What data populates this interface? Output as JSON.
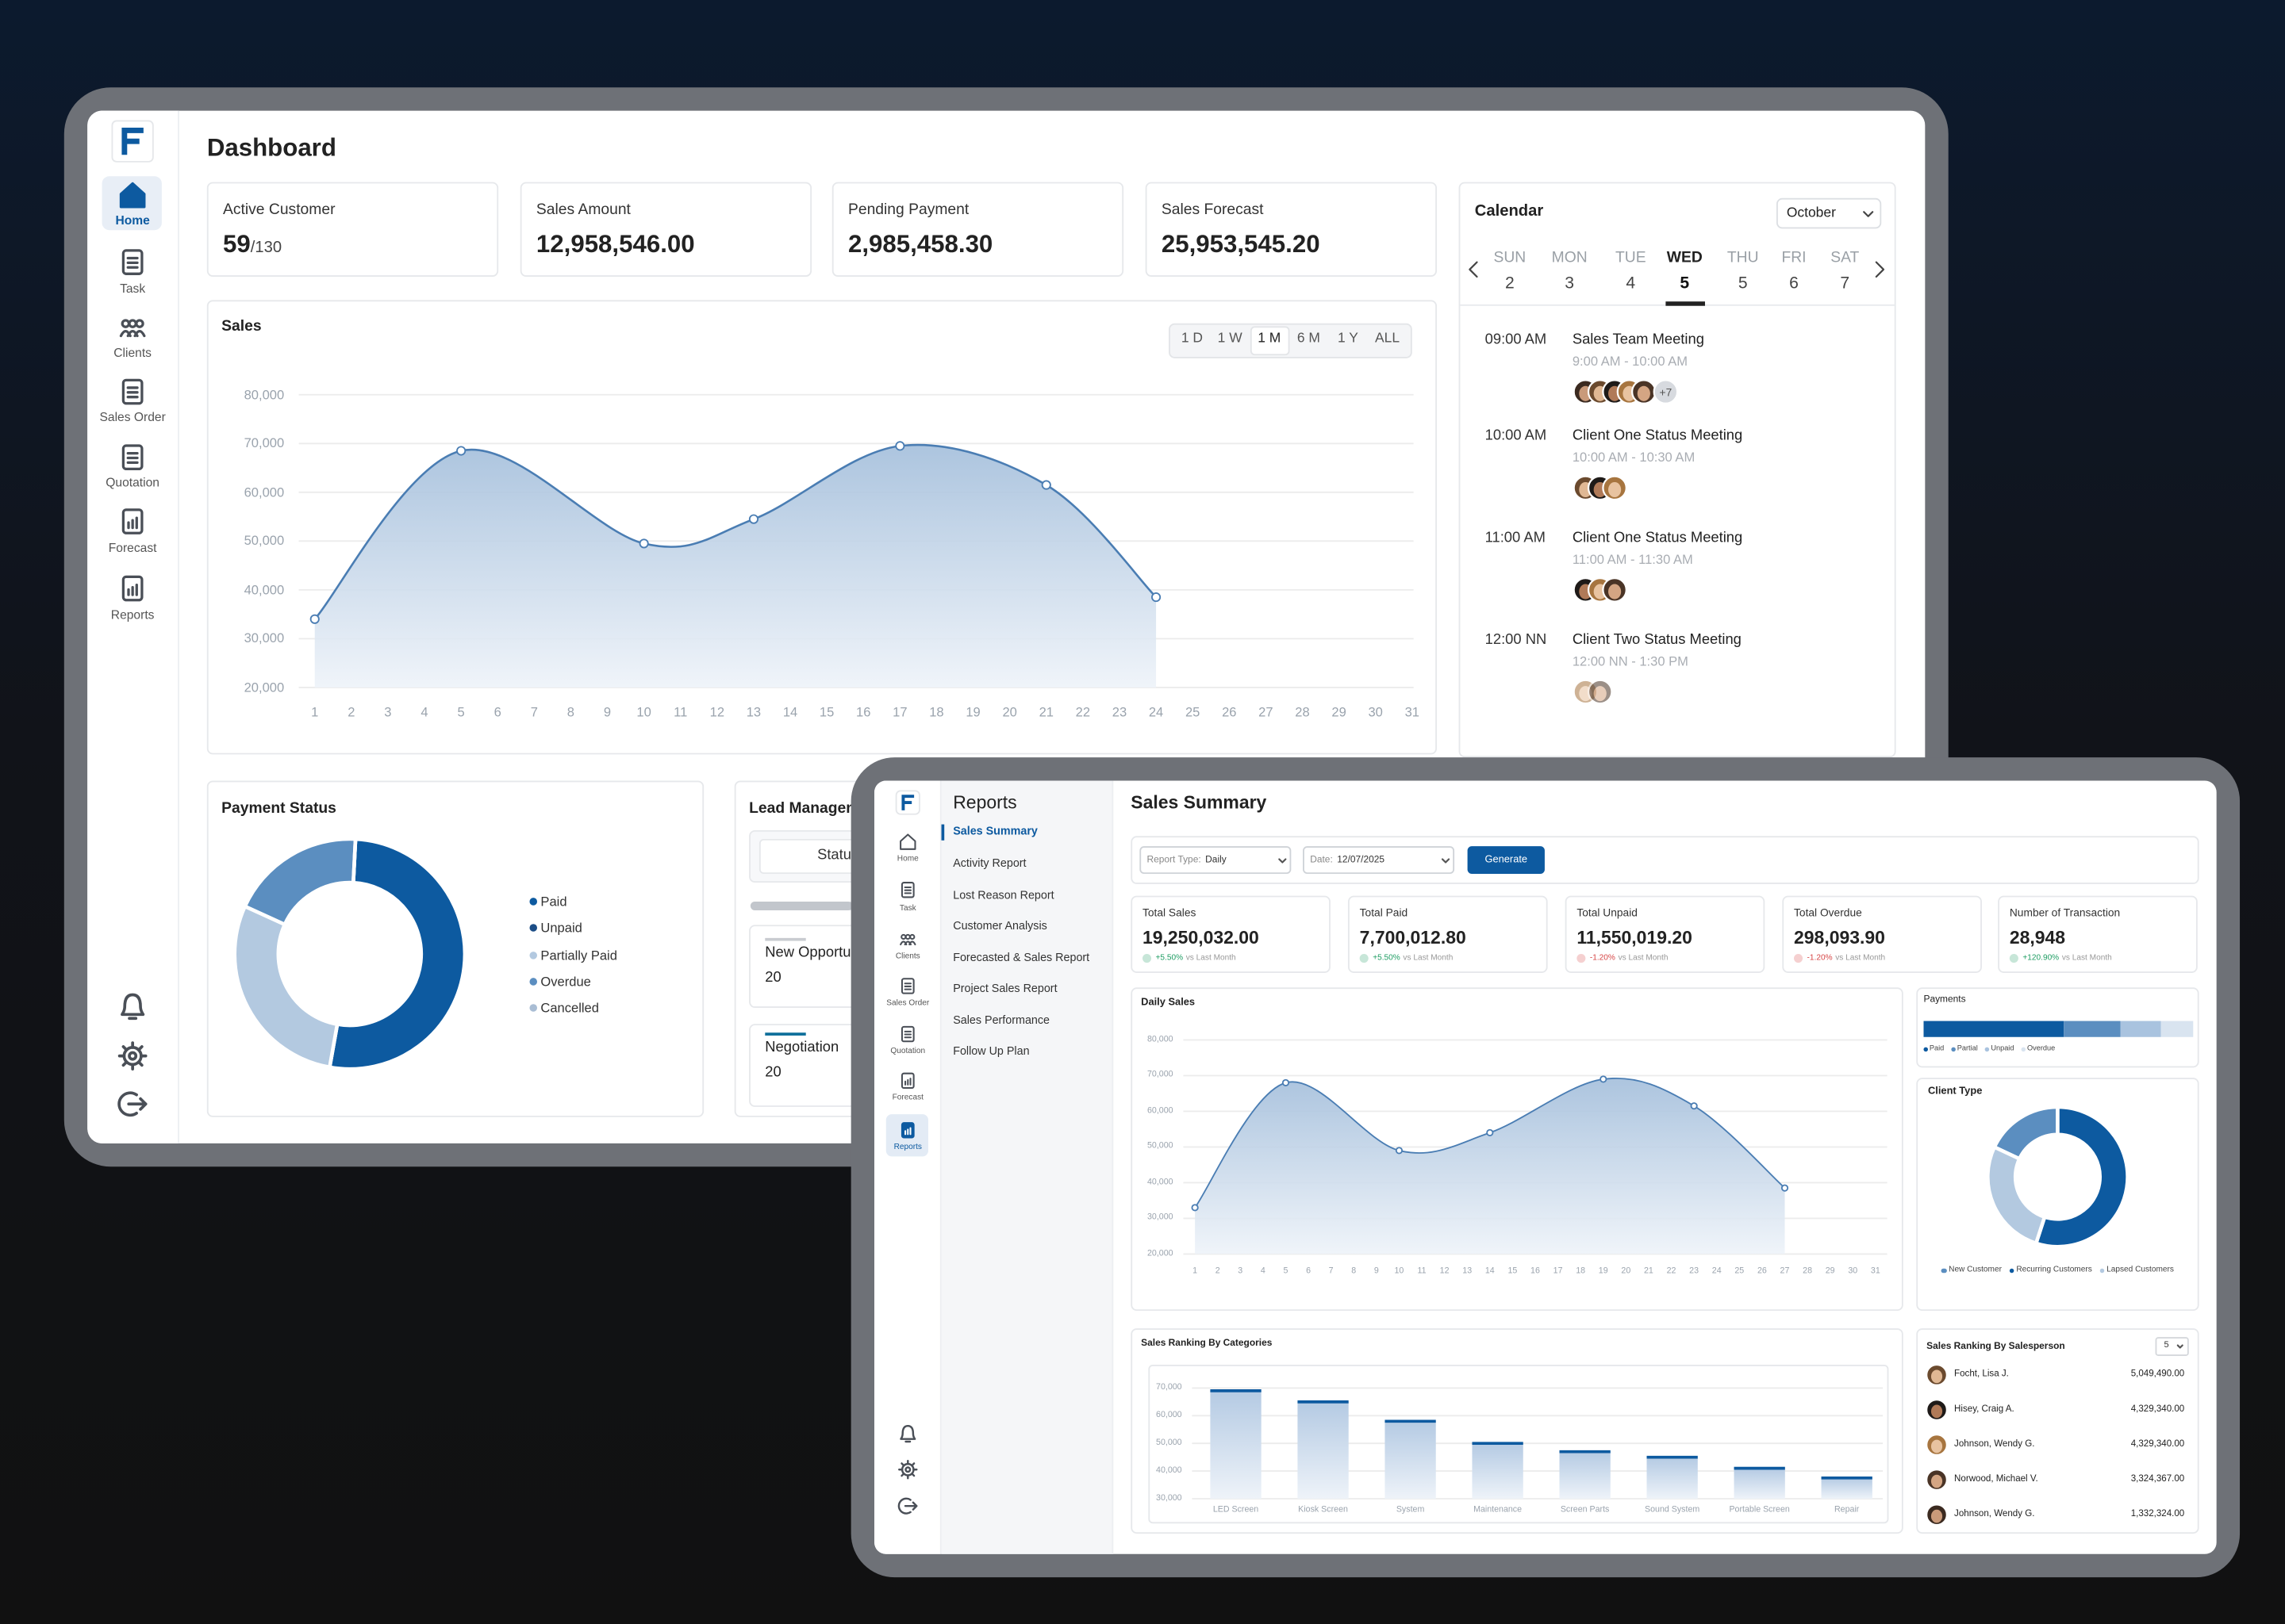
{
  "dashboard": {
    "nav": [
      "Home",
      "Task",
      "Clients",
      "Sales Order",
      "Quotation",
      "Forecast",
      "Reports"
    ],
    "active_nav": 0,
    "title": "Dashboard",
    "kpis": [
      {
        "label": "Active Customer",
        "value": "59",
        "suffix": "/130"
      },
      {
        "label": "Sales Amount",
        "value": "12,958,546.00"
      },
      {
        "label": "Pending Payment",
        "value": "2,985,458.30"
      },
      {
        "label": "Sales Forecast",
        "value": "25,953,545.20"
      }
    ],
    "sales": {
      "title": "Sales",
      "ranges": [
        "1 D",
        "1 W",
        "1 M",
        "6 M",
        "1 Y",
        "ALL"
      ],
      "active_range": 2,
      "xlim": [
        1,
        31
      ],
      "xticks": [
        1,
        2,
        3,
        4,
        5,
        6,
        7,
        8,
        9,
        10,
        11,
        12,
        13,
        14,
        15,
        16,
        17,
        18,
        19,
        20,
        21,
        22,
        23,
        24,
        25,
        26,
        27,
        28,
        29,
        30,
        31
      ],
      "x": [
        1,
        5,
        10,
        13,
        17,
        21,
        24
      ],
      "values": [
        34000,
        68500,
        49500,
        54500,
        69500,
        61500,
        38500
      ],
      "ylim": [
        20000,
        80000
      ],
      "yticks": [
        {
          "value": 20000,
          "label": "20,000"
        },
        {
          "value": 30000,
          "label": "30,000"
        },
        {
          "value": 40000,
          "label": "40,000"
        },
        {
          "value": 50000,
          "label": "50,000"
        },
        {
          "value": 60000,
          "label": "60,000"
        },
        {
          "value": 70000,
          "label": "70,000"
        },
        {
          "value": 80000,
          "label": "80,000"
        }
      ],
      "color": "#4a7db3",
      "grid": true
    },
    "calendar": {
      "title": "Calendar",
      "month": "October",
      "days": [
        {
          "name": "SUN",
          "date": 2
        },
        {
          "name": "MON",
          "date": 3
        },
        {
          "name": "TUE",
          "date": 4
        },
        {
          "name": "WED",
          "date": 5
        },
        {
          "name": "THU",
          "date": 5
        },
        {
          "name": "FRI",
          "date": 6
        },
        {
          "name": "SAT",
          "date": 7
        }
      ],
      "selected_day": 3,
      "events": [
        {
          "time": "09:00 AM",
          "title": "Sales Team Meeting",
          "range": "9:00 AM - 10:00 AM",
          "more": "+7"
        },
        {
          "time": "10:00 AM",
          "title": "Client One Status Meeting",
          "range": "10:00 AM - 10:30 AM"
        },
        {
          "time": "11:00 AM",
          "title": "Client One Status Meeting",
          "range": "11:00 AM - 11:30 AM"
        },
        {
          "time": "12:00 NN",
          "title": "Client Two Status Meeting",
          "range": "12:00 NN - 1:30 PM"
        }
      ]
    },
    "payment_status": {
      "title": "Payment Status",
      "labels": [
        "Paid",
        "Unpaid",
        "Partially Paid",
        "Overdue",
        "Cancelled"
      ],
      "values": [
        52,
        0,
        29,
        19,
        0
      ],
      "colors": [
        "#0d5aa0",
        "#1b4d86",
        "#b3c9e0",
        "#5b8ec0",
        "#a9bdd4"
      ]
    },
    "lead_management": {
      "title": "Lead Management",
      "status": "Status",
      "stages": [
        {
          "name": "New Opportunity",
          "count": 20
        },
        {
          "name": "Negotiation",
          "count": 20
        }
      ]
    }
  },
  "reports": {
    "nav": [
      "Home",
      "Task",
      "Clients",
      "Sales Order",
      "Quotation",
      "Forecast",
      "Reports"
    ],
    "active_nav": 6,
    "menu_title": "Reports",
    "menu": [
      "Sales Summary",
      "Activity Report",
      "Lost Reason Report",
      "Customer Analysis",
      "Forecasted & Sales Report",
      "Project Sales Report",
      "Sales Performance",
      "Follow Up Plan"
    ],
    "active_menu": 0,
    "title": "Sales Summary",
    "filters": {
      "report_type_label": "Report Type:",
      "report_type": "Daily",
      "date_label": "Date:",
      "date": "12/07/2025",
      "button": "Generate"
    },
    "kpis": [
      {
        "label": "Total Sales",
        "value": "19,250,032.00",
        "change": "+5.50%",
        "note": "vs Last Month",
        "color": "#1f9d63"
      },
      {
        "label": "Total Paid",
        "value": "7,700,012.80",
        "change": "+5.50%",
        "note": "vs Last Month",
        "color": "#1f9d63"
      },
      {
        "label": "Total Unpaid",
        "value": "11,550,019.20",
        "change": "-1.20%",
        "note": "vs Last Month",
        "color": "#d64545"
      },
      {
        "label": "Total Overdue",
        "value": "298,093.90",
        "change": "-1.20%",
        "note": "vs Last Month",
        "color": "#d64545"
      },
      {
        "label": "Number of Transaction",
        "value": "28,948",
        "change": "+120.90%",
        "note": "vs Last Month",
        "color": "#1f9d63"
      }
    ],
    "daily_sales": {
      "title": "Daily Sales",
      "xlim": [
        1,
        31
      ],
      "xticks": [
        1,
        2,
        3,
        4,
        5,
        6,
        7,
        8,
        9,
        10,
        11,
        12,
        13,
        14,
        15,
        16,
        17,
        18,
        19,
        20,
        21,
        22,
        23,
        24,
        25,
        26,
        27,
        28,
        29,
        30,
        31
      ],
      "x": [
        1,
        5,
        10,
        14,
        19,
        23,
        27
      ],
      "values": [
        33000,
        68000,
        49000,
        54000,
        69000,
        61500,
        38500
      ],
      "ylim": [
        20000,
        80000
      ],
      "yticks": [
        {
          "value": 20000,
          "label": "20,000"
        },
        {
          "value": 30000,
          "label": "30,000"
        },
        {
          "value": 40000,
          "label": "40,000"
        },
        {
          "value": 50000,
          "label": "50,000"
        },
        {
          "value": 60000,
          "label": "60,000"
        },
        {
          "value": 70000,
          "label": "70,000"
        },
        {
          "value": 80000,
          "label": "80,000"
        }
      ],
      "color": "#4a7db3",
      "grid": true
    },
    "payments": {
      "title": "Payments",
      "labels": [
        "Paid",
        "Partial",
        "Unpaid",
        "Overdue"
      ],
      "values": [
        52,
        21,
        15,
        12
      ],
      "colors": [
        "#0d5aa0",
        "#5b8ec0",
        "#a9c3df",
        "#d9e4f0"
      ]
    },
    "client_type": {
      "title": "Client Type",
      "labels": [
        "New Customer",
        "Recurring Customers",
        "Lapsed Customers"
      ],
      "values": [
        18,
        55,
        27
      ],
      "colors": [
        "#5b8ec0",
        "#0d5aa0",
        "#b3c9e0"
      ]
    },
    "category_ranking": {
      "title": "Sales Ranking By Categories",
      "categories": [
        "LED Screen",
        "Kiosk Screen",
        "System",
        "Maintenance",
        "Screen Parts",
        "Sound System",
        "Portable Screen",
        "Repair"
      ],
      "values": [
        69000,
        65000,
        58000,
        50000,
        47000,
        45000,
        41000,
        37500
      ],
      "ylim": [
        30000,
        74000
      ],
      "yticks": [
        {
          "value": 30000,
          "label": "30,000"
        },
        {
          "value": 40000,
          "label": "40,000"
        },
        {
          "value": 50000,
          "label": "50,000"
        },
        {
          "value": 60000,
          "label": "60,000"
        },
        {
          "value": 70000,
          "label": "70,000"
        }
      ],
      "color": "#0d5aa0",
      "grid": true
    },
    "salesperson_ranking": {
      "title": "Sales Ranking By Salesperson",
      "limit": "5",
      "rows": [
        {
          "name": "Focht, Lisa J.",
          "amount": "5,049,490.00"
        },
        {
          "name": "Hisey, Craig A.",
          "amount": "4,329,340.00"
        },
        {
          "name": "Johnson, Wendy G.",
          "amount": "4,329,340.00"
        },
        {
          "name": "Norwood, Michael V.",
          "amount": "3,324,367.00"
        },
        {
          "name": "Johnson, Wendy G.",
          "amount": "1,332,324.00"
        }
      ]
    }
  }
}
